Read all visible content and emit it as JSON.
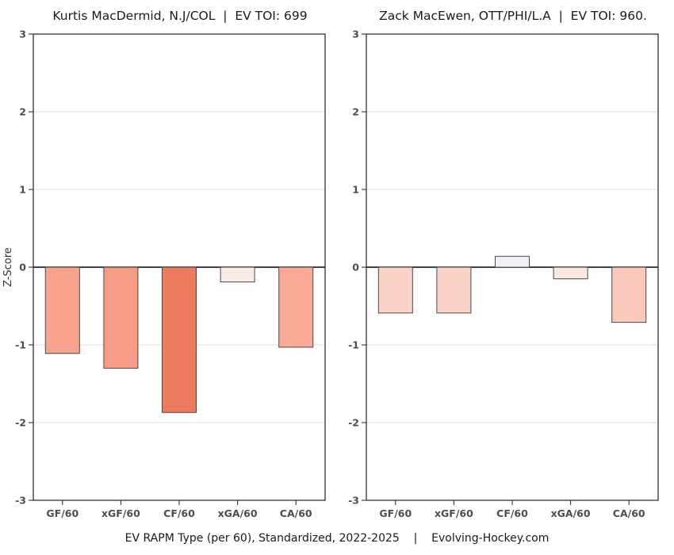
{
  "figure": {
    "left_title": "Kurtis MacDermid, N.J/COL  |  EV TOI: 699",
    "right_title": "Zack MacEwen, OTT/PHI/L.A  |  EV TOI: 960.",
    "caption": "EV RAPM Type (per 60), Standardized, 2022-2025    |    Evolving-Hockey.com",
    "ylabel": "Z-Score"
  },
  "chart_data": [
    {
      "type": "bar",
      "panel": "left",
      "title": "Kurtis MacDermid, N.J/COL  |  EV TOI: 699",
      "categories": [
        "GF/60",
        "xGF/60",
        "CF/60",
        "xGA/60",
        "CA/60"
      ],
      "values": [
        -1.11,
        -1.3,
        -1.87,
        -0.19,
        -1.03
      ],
      "bar_colors": [
        "#F9A48E",
        "#F89C85",
        "#EE7A60",
        "#FBEAE6",
        "#FAAA94"
      ],
      "xlabel": "",
      "ylabel": "Z-Score",
      "ylim": [
        -3,
        3
      ],
      "yticks": [
        3,
        2,
        1,
        0,
        -1,
        -2,
        -3
      ],
      "grid": true,
      "legend": false
    },
    {
      "type": "bar",
      "panel": "right",
      "title": "Zack MacEwen, OTT/PHI/L.A  |  EV TOI: 960.",
      "categories": [
        "GF/60",
        "xGF/60",
        "CF/60",
        "xGA/60",
        "CA/60"
      ],
      "values": [
        -0.59,
        -0.59,
        0.14,
        -0.15,
        -0.71
      ],
      "bar_colors": [
        "#FBD2C7",
        "#FBD2C7",
        "#F1F1F7",
        "#FCE8E3",
        "#FBC9BC"
      ],
      "xlabel": "",
      "ylabel": "",
      "ylim": [
        -3,
        3
      ],
      "yticks": [
        3,
        2,
        1,
        0,
        -1,
        -2,
        -3
      ],
      "grid": true,
      "legend": false
    }
  ],
  "colors": {
    "background": "#ffffff",
    "bar_stroke": "#4a4a4a",
    "frame": "#333333",
    "gridline": "#dcdcdc",
    "zero_line": "#262626",
    "tick_mark": "#333333",
    "tick_label": "#4d4d4d",
    "title_text": "#1a1a1a"
  }
}
